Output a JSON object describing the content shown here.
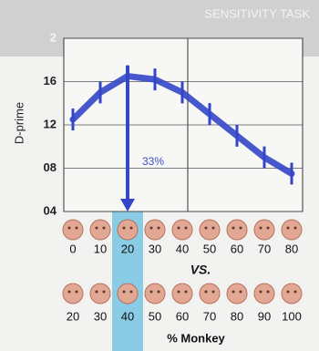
{
  "chart_data": {
    "type": "line",
    "title": "SENSITIVITY TASK",
    "ylabel": "D-prime",
    "categories": [
      "0",
      "10",
      "20",
      "30",
      "40",
      "50",
      "60",
      "70",
      "80"
    ],
    "second_row": [
      "20",
      "30",
      "40",
      "50",
      "60",
      "70",
      "80",
      "90",
      "100"
    ],
    "separator": "VS.",
    "xlabel": "% Monkey",
    "annotation": "33%",
    "series": [
      {
        "name": "D-prime",
        "color": "#3346c8",
        "values": [
          1.25,
          1.5,
          1.65,
          1.62,
          1.5,
          1.3,
          1.1,
          0.9,
          0.75
        ]
      }
    ],
    "ylim": [
      0.4,
      2.0
    ],
    "yticks": [
      {
        "value": 0.4,
        "label": "04"
      },
      {
        "value": 0.8,
        "label": "08"
      },
      {
        "value": 1.2,
        "label": "12"
      },
      {
        "value": 1.6,
        "label": "16"
      },
      2
    ],
    "grid": true
  }
}
